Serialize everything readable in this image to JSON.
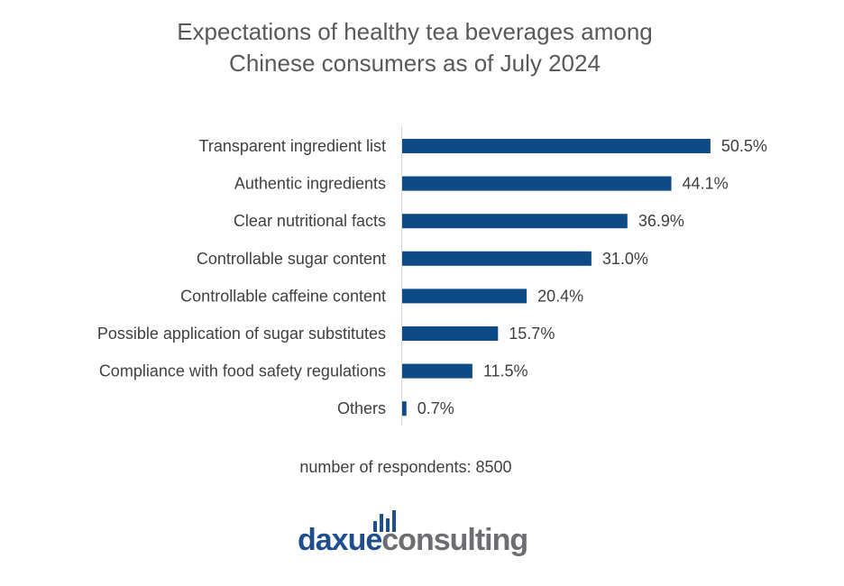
{
  "chart_data": {
    "type": "bar",
    "orientation": "horizontal",
    "title": [
      "Expectations of healthy tea beverages among",
      "Chinese consumers as of July 2024"
    ],
    "categories": [
      "Transparent ingredient list",
      "Authentic ingredients",
      "Clear nutritional facts",
      "Controllable sugar content",
      "Controllable caffeine content",
      "Possible application of sugar substitutes",
      "Compliance with food safety regulations",
      "Others"
    ],
    "values": [
      50.5,
      44.1,
      36.9,
      31.0,
      20.4,
      15.7,
      11.5,
      0.7
    ],
    "value_labels": [
      "50.5%",
      "44.1%",
      "36.9%",
      "31.0%",
      "20.4%",
      "15.7%",
      "11.5%",
      "0.7%"
    ],
    "unit": "%",
    "xlim": [
      0,
      60
    ],
    "bar_color": "#0e4a84",
    "grid": false,
    "legend": "none"
  },
  "note": "number of respondents: 8500",
  "logo": {
    "word_primary": "daxue",
    "word_secondary": "consulting",
    "color_primary": "#1f4e8c",
    "color_secondary": "#6d6e71"
  }
}
